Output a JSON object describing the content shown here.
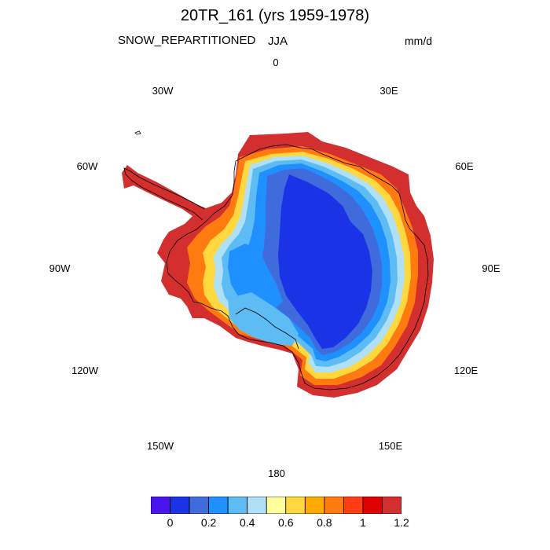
{
  "title": "20TR_161 (yrs 1959-1978)",
  "variable": "SNOW_REPARTITIONED",
  "season": "JJA",
  "units": "mm/d",
  "longitude_labels": {
    "lon_0": "0",
    "lon_30e": "30E",
    "lon_60e": "60E",
    "lon_90e": "90E",
    "lon_120e": "120E",
    "lon_150e": "150E",
    "lon_180": "180",
    "lon_150w": "150W",
    "lon_120w": "120W",
    "lon_90w": "90W",
    "lon_60w": "60W",
    "lon_30w": "30W"
  },
  "colorbar": {
    "colors": [
      "#4a14f0",
      "#1a33e6",
      "#3f6bdc",
      "#1e90ff",
      "#5ebcf5",
      "#b0e0f5",
      "#ffff9e",
      "#ffd73f",
      "#ffaa00",
      "#ff7a0f",
      "#ff3c14",
      "#e00000",
      "#d32f2f"
    ],
    "tick_labels": [
      "0",
      "0.2",
      "0.4",
      "0.6",
      "0.8",
      "1",
      "1.2"
    ]
  }
}
